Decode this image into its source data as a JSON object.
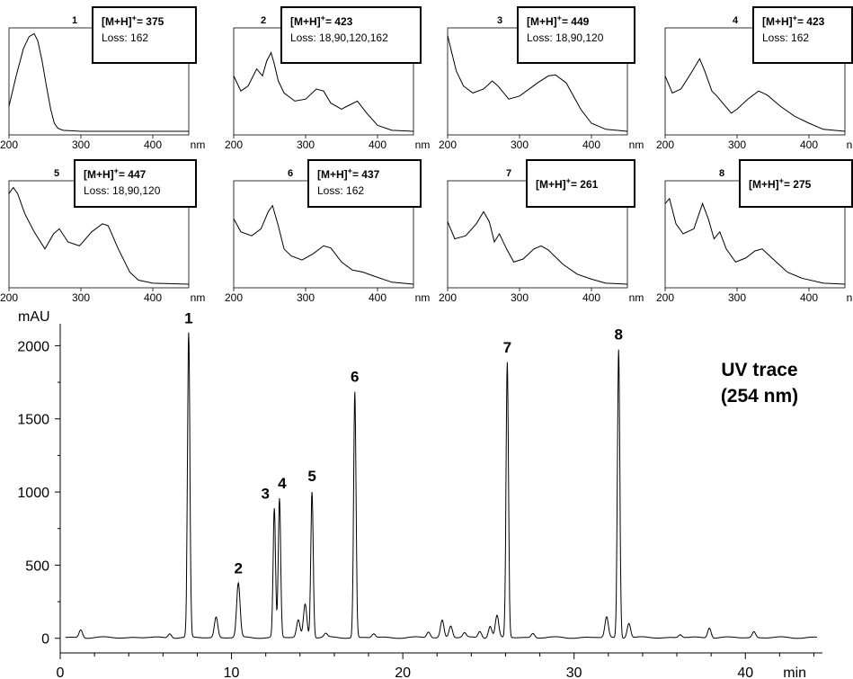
{
  "chart_data": [
    {
      "type": "line",
      "id": "spectrum-1",
      "peak_label": "1",
      "mass_line": "[M+H]",
      "charge": "+",
      "mass_value": "= 375",
      "loss": "Loss: 162",
      "x_unit": "nm",
      "x_ticks": [
        "200",
        "300",
        "400"
      ],
      "xlim": [
        200,
        450
      ],
      "x": [
        200,
        210,
        220,
        228,
        235,
        240,
        246,
        252,
        258,
        263,
        268,
        275,
        300,
        350,
        400,
        450
      ],
      "y": [
        0.25,
        0.55,
        0.82,
        0.94,
        0.97,
        0.9,
        0.7,
        0.45,
        0.22,
        0.08,
        0.03,
        0.01,
        0.0,
        0.0,
        0.0,
        0.0
      ]
    },
    {
      "type": "line",
      "id": "spectrum-2",
      "peak_label": "2",
      "mass_line": "[M+H]",
      "charge": "+",
      "mass_value": "= 423",
      "loss": "Loss: 18,90,120,162",
      "x_unit": "nm",
      "x_ticks": [
        "200",
        "300",
        "400"
      ],
      "xlim": [
        200,
        450
      ],
      "x": [
        200,
        210,
        220,
        232,
        240,
        246,
        252,
        256,
        262,
        270,
        285,
        300,
        315,
        325,
        335,
        350,
        358,
        372,
        385,
        400,
        420,
        450
      ],
      "y": [
        0.55,
        0.4,
        0.45,
        0.62,
        0.55,
        0.7,
        0.78,
        0.68,
        0.5,
        0.38,
        0.3,
        0.32,
        0.42,
        0.4,
        0.28,
        0.22,
        0.25,
        0.3,
        0.18,
        0.06,
        0.01,
        0.0
      ]
    },
    {
      "type": "line",
      "id": "spectrum-3",
      "peak_label": "3",
      "mass_line": "[M+H]",
      "charge": "+",
      "mass_value": "= 449",
      "loss": "Loss: 18,90,120",
      "x_unit": "nm",
      "x_ticks": [
        "200",
        "300",
        "400"
      ],
      "xlim": [
        200,
        450
      ],
      "x": [
        200,
        212,
        222,
        235,
        250,
        262,
        270,
        285,
        300,
        325,
        340,
        350,
        365,
        385,
        400,
        420,
        450
      ],
      "y": [
        0.95,
        0.6,
        0.45,
        0.38,
        0.42,
        0.5,
        0.45,
        0.32,
        0.35,
        0.48,
        0.55,
        0.56,
        0.48,
        0.22,
        0.08,
        0.02,
        0.0
      ]
    },
    {
      "type": "line",
      "id": "spectrum-4",
      "peak_label": "4",
      "mass_line": "[M+H]",
      "charge": "+",
      "mass_value": "= 423",
      "loss": "Loss: 162",
      "x_unit": "nm",
      "x_ticks": [
        "200",
        "300",
        "400"
      ],
      "xlim": [
        200,
        450
      ],
      "x": [
        200,
        210,
        222,
        238,
        248,
        255,
        265,
        272,
        280,
        292,
        300,
        315,
        330,
        342,
        360,
        380,
        400,
        420,
        450
      ],
      "y": [
        0.55,
        0.38,
        0.42,
        0.6,
        0.72,
        0.6,
        0.4,
        0.35,
        0.28,
        0.18,
        0.22,
        0.32,
        0.4,
        0.36,
        0.25,
        0.15,
        0.08,
        0.02,
        0.0
      ]
    },
    {
      "type": "line",
      "id": "spectrum-5",
      "peak_label": "5",
      "mass_line": "[M+H]",
      "charge": "+",
      "mass_value": "= 447",
      "loss": "Loss: 18,90,120",
      "x_unit": "nm",
      "x_ticks": [
        "200",
        "300",
        "400"
      ],
      "xlim": [
        200,
        450
      ],
      "x": [
        200,
        206,
        212,
        222,
        235,
        250,
        262,
        270,
        282,
        298,
        315,
        330,
        338,
        352,
        368,
        380,
        400,
        450
      ],
      "y": [
        0.9,
        0.96,
        0.9,
        0.7,
        0.52,
        0.35,
        0.5,
        0.55,
        0.42,
        0.38,
        0.52,
        0.6,
        0.58,
        0.35,
        0.12,
        0.04,
        0.01,
        0.0
      ]
    },
    {
      "type": "line",
      "id": "spectrum-6",
      "peak_label": "6",
      "mass_line": "[M+H]",
      "charge": "+",
      "mass_value": "= 437",
      "loss": "Loss: 162",
      "x_unit": "nm",
      "x_ticks": [
        "200",
        "300",
        "400"
      ],
      "xlim": [
        200,
        450
      ],
      "x": [
        200,
        210,
        225,
        238,
        248,
        254,
        262,
        270,
        280,
        295,
        310,
        325,
        335,
        350,
        365,
        380,
        395,
        420,
        450
      ],
      "y": [
        0.65,
        0.52,
        0.48,
        0.55,
        0.72,
        0.78,
        0.58,
        0.35,
        0.28,
        0.24,
        0.3,
        0.38,
        0.36,
        0.22,
        0.14,
        0.12,
        0.08,
        0.02,
        0.0
      ]
    },
    {
      "type": "line",
      "id": "spectrum-7",
      "peak_label": "7",
      "mass_line": "[M+H]",
      "charge": "+",
      "mass_value": "= 261",
      "loss": "",
      "x_unit": "nm",
      "x_ticks": [
        "200",
        "300",
        "400"
      ],
      "xlim": [
        200,
        450
      ],
      "x": [
        200,
        210,
        225,
        240,
        250,
        258,
        265,
        272,
        282,
        292,
        305,
        320,
        330,
        340,
        360,
        380,
        400,
        420,
        450
      ],
      "y": [
        0.62,
        0.45,
        0.48,
        0.6,
        0.72,
        0.62,
        0.42,
        0.5,
        0.35,
        0.22,
        0.25,
        0.35,
        0.38,
        0.34,
        0.2,
        0.1,
        0.05,
        0.01,
        0.0
      ]
    },
    {
      "type": "line",
      "id": "spectrum-8",
      "peak_label": "8",
      "mass_line": "[M+H]",
      "charge": "+",
      "mass_value": "= 275",
      "loss": "",
      "x_unit": "nm",
      "x_ticks": [
        "200",
        "300",
        "400"
      ],
      "xlim": [
        200,
        450
      ],
      "x": [
        200,
        206,
        215,
        225,
        240,
        252,
        260,
        268,
        276,
        285,
        298,
        312,
        325,
        335,
        350,
        370,
        390,
        420,
        450
      ],
      "y": [
        0.8,
        0.85,
        0.6,
        0.5,
        0.55,
        0.8,
        0.65,
        0.45,
        0.52,
        0.35,
        0.22,
        0.26,
        0.33,
        0.35,
        0.25,
        0.12,
        0.06,
        0.01,
        0.0
      ]
    },
    {
      "type": "line",
      "id": "chromatogram",
      "title_line1": "UV trace",
      "title_line2": "(254 nm)",
      "ylabel": "mAU",
      "xlabel": "min",
      "xlim": [
        0,
        44.5
      ],
      "ylim": [
        -100,
        2150
      ],
      "x_ticks": [
        0,
        10,
        20,
        30,
        40
      ],
      "x_tick_labels": [
        "0",
        "10",
        "20",
        "30",
        "40"
      ],
      "y_ticks": [
        0,
        500,
        1000,
        1500,
        2000
      ],
      "y_tick_labels": [
        "0",
        "500",
        "1000",
        "1500",
        "2000"
      ],
      "baseline": 5,
      "peaks": [
        {
          "rt": 1.2,
          "height": 55,
          "label": ""
        },
        {
          "rt": 6.4,
          "height": 30,
          "label": ""
        },
        {
          "rt": 7.5,
          "height": 2080,
          "label": "1"
        },
        {
          "rt": 9.1,
          "height": 140,
          "label": ""
        },
        {
          "rt": 10.4,
          "height": 370,
          "label": "2"
        },
        {
          "rt": 12.5,
          "height": 880,
          "label": "3"
        },
        {
          "rt": 12.8,
          "height": 950,
          "label": "4"
        },
        {
          "rt": 13.9,
          "height": 120,
          "label": ""
        },
        {
          "rt": 14.3,
          "height": 230,
          "label": ""
        },
        {
          "rt": 14.7,
          "height": 1000,
          "label": "5"
        },
        {
          "rt": 15.5,
          "height": 25,
          "label": ""
        },
        {
          "rt": 17.2,
          "height": 1680,
          "label": "6"
        },
        {
          "rt": 18.3,
          "height": 25,
          "label": ""
        },
        {
          "rt": 21.5,
          "height": 40,
          "label": ""
        },
        {
          "rt": 22.3,
          "height": 120,
          "label": ""
        },
        {
          "rt": 22.8,
          "height": 80,
          "label": ""
        },
        {
          "rt": 23.6,
          "height": 30,
          "label": ""
        },
        {
          "rt": 24.5,
          "height": 45,
          "label": ""
        },
        {
          "rt": 25.1,
          "height": 80,
          "label": ""
        },
        {
          "rt": 25.5,
          "height": 150,
          "label": ""
        },
        {
          "rt": 26.1,
          "height": 1880,
          "label": "7"
        },
        {
          "rt": 27.6,
          "height": 30,
          "label": ""
        },
        {
          "rt": 31.9,
          "height": 140,
          "label": ""
        },
        {
          "rt": 32.6,
          "height": 1970,
          "label": "8"
        },
        {
          "rt": 33.2,
          "height": 100,
          "label": ""
        },
        {
          "rt": 36.2,
          "height": 20,
          "label": ""
        },
        {
          "rt": 37.9,
          "height": 70,
          "label": ""
        },
        {
          "rt": 40.5,
          "height": 40,
          "label": ""
        }
      ]
    }
  ]
}
